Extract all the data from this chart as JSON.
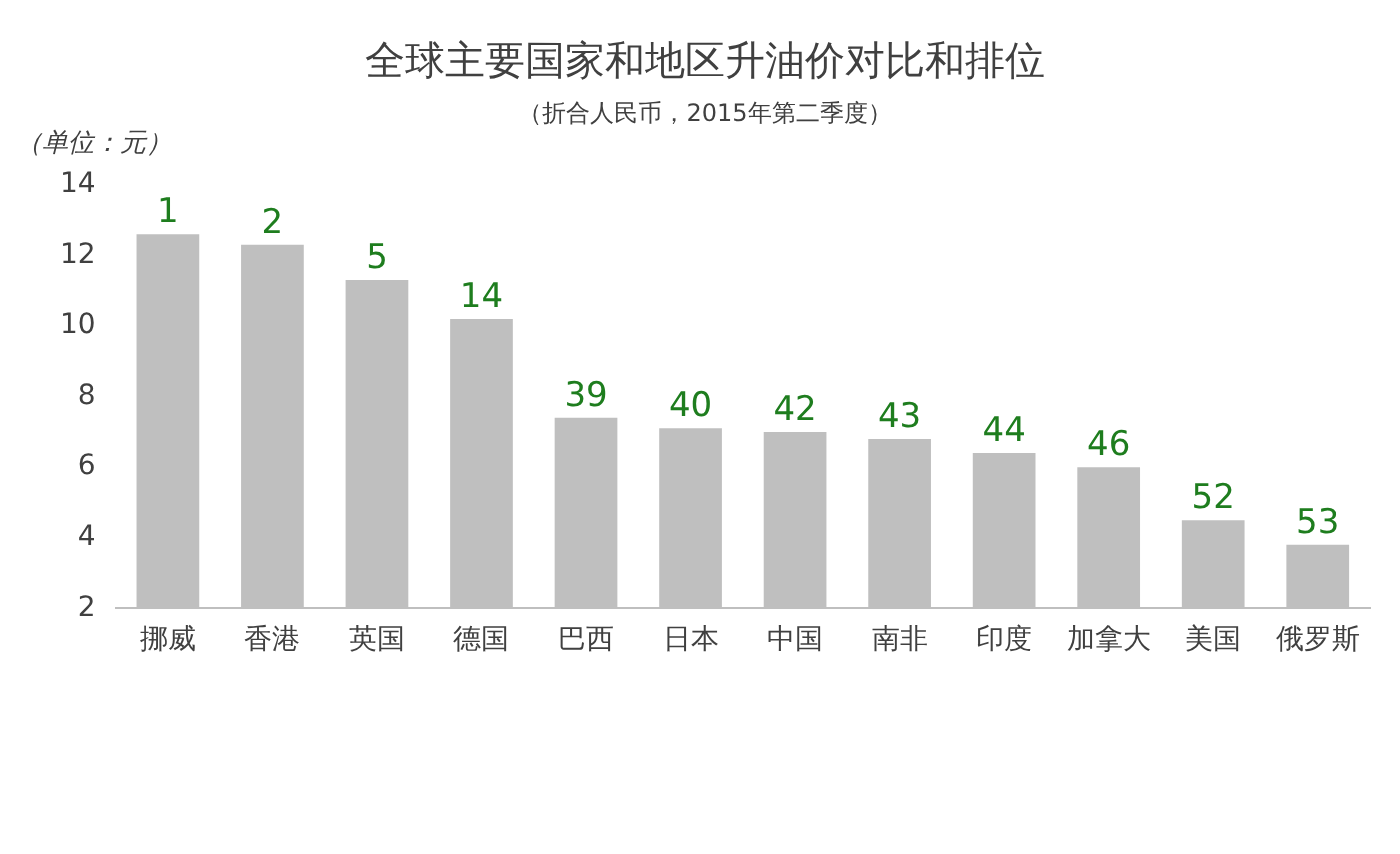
{
  "chart_data": {
    "type": "bar",
    "title": "全球主要国家和地区升油价对比和排位",
    "subtitle": "（折合人民币，2015年第二季度）",
    "ylabel": "（单位：元）",
    "categories": [
      "挪威",
      "香港",
      "英国",
      "德国",
      "巴西",
      "日本",
      "中国",
      "南非",
      "印度",
      "加拿大",
      "美国",
      "俄罗斯"
    ],
    "values": [
      12.6,
      12.3,
      11.3,
      10.2,
      7.4,
      7.1,
      7.0,
      6.8,
      6.4,
      6.0,
      4.5,
      3.8
    ],
    "annotations": [
      {
        "text": "1",
        "x": "挪威",
        "y": 12.6
      },
      {
        "text": "2",
        "x": "香港",
        "y": 12.3
      },
      {
        "text": "5",
        "x": "英国",
        "y": 11.3
      },
      {
        "text": "14",
        "x": "德国",
        "y": 10.2
      },
      {
        "text": "39",
        "x": "巴西",
        "y": 7.4
      },
      {
        "text": "40",
        "x": "日本",
        "y": 7.1
      },
      {
        "text": "42",
        "x": "中国",
        "y": 7.0
      },
      {
        "text": "43",
        "x": "南非",
        "y": 6.8
      },
      {
        "text": "44",
        "x": "印度",
        "y": 6.4
      },
      {
        "text": "46",
        "x": "加拿大",
        "y": 6.0
      },
      {
        "text": "52",
        "x": "美国",
        "y": 4.5
      },
      {
        "text": "53",
        "x": "俄罗斯",
        "y": 3.8
      }
    ],
    "color": "#bfbfbf",
    "ylim": [
      2,
      14
    ],
    "yticks": [
      2,
      4,
      6,
      8,
      10,
      12,
      14
    ],
    "grid": false,
    "legend": false
  }
}
